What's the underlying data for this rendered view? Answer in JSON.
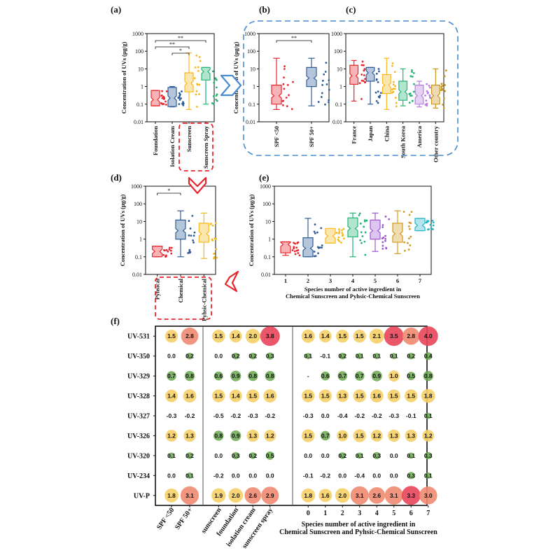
{
  "chart_data": [
    {
      "panel": "(a)",
      "type": "scatter",
      "ylabel": "Concentration of UVs (μg/g)",
      "yscale": "log",
      "ylim": [
        0.01,
        1000
      ],
      "yticks": [
        "0.01",
        "0.1",
        "1",
        "10",
        "100",
        "1000"
      ],
      "categories": [
        "Foundation",
        "Isolation Cream",
        "Sunscreen",
        "Sunscreen Spray"
      ],
      "colors": [
        "#e8262d",
        "#2e5d96",
        "#f6b81c",
        "#22b573"
      ],
      "medians": [
        0.18,
        0.22,
        1.5,
        7
      ],
      "ranges": [
        [
          0.08,
          0.6
        ],
        [
          0.07,
          1.0
        ],
        [
          0.05,
          80
        ],
        [
          0.1,
          12
        ]
      ],
      "significance": [
        {
          "from": 0,
          "to": 3,
          "label": "**"
        },
        {
          "from": 0,
          "to": 2,
          "label": "**"
        },
        {
          "from": 1,
          "to": 2,
          "label": "*"
        }
      ]
    },
    {
      "panel": "(b)",
      "type": "scatter",
      "ylabel": "Concentration of UVs (μg/g)",
      "yscale": "log",
      "ylim": [
        0.01,
        1000
      ],
      "yticks": [
        "0.01",
        "0.1",
        "1",
        "10",
        "100",
        "1000"
      ],
      "categories": [
        "SPF <50",
        "SPF 50+"
      ],
      "colors": [
        "#e8262d",
        "#2e5d96"
      ],
      "medians": [
        0.3,
        3
      ],
      "ranges": [
        [
          0.05,
          40
        ],
        [
          0.08,
          40
        ]
      ],
      "significance": [
        {
          "from": 0,
          "to": 1,
          "label": "**"
        }
      ]
    },
    {
      "panel": "(c)",
      "type": "scatter",
      "yscale": "log",
      "ylim": [
        0.01,
        1000
      ],
      "yticks": [
        "0.01",
        "0.1",
        "1",
        "10",
        "100",
        "1000"
      ],
      "categories": [
        "France",
        "Japan",
        "China",
        "South Korea",
        "America",
        "Other country"
      ],
      "colors": [
        "#e8262d",
        "#2e5d96",
        "#f6b81c",
        "#22b573",
        "#b57edc",
        "#c8961e"
      ],
      "medians": [
        4,
        6,
        1.2,
        0.5,
        0.3,
        0.3
      ],
      "ranges": [
        [
          0.15,
          30
        ],
        [
          0.1,
          12
        ],
        [
          0.05,
          40
        ],
        [
          0.08,
          10
        ],
        [
          0.07,
          2
        ],
        [
          0.06,
          10
        ]
      ]
    },
    {
      "panel": "(d)",
      "type": "scatter",
      "ylabel": "Concentration of UVs (μg/g)",
      "yscale": "log",
      "ylim": [
        0.01,
        1000
      ],
      "yticks": [
        "0.01",
        "0.1",
        "1",
        "10",
        "100",
        "1000"
      ],
      "categories": [
        "Pyhsical",
        "Chemical",
        "Pyhsic-Chemical"
      ],
      "colors": [
        "#e8262d",
        "#2e5d96",
        "#f6b81c"
      ],
      "medians": [
        0.2,
        3,
        2
      ],
      "ranges": [
        [
          0.1,
          0.4
        ],
        [
          0.1,
          40
        ],
        [
          0.08,
          30
        ]
      ],
      "significance": [
        {
          "from": 0,
          "to": 1,
          "label": "*"
        }
      ]
    },
    {
      "panel": "(e)",
      "type": "scatter",
      "ylabel": "Concentration of UVs (μg/g)",
      "xlabel": [
        "Species number of active ingredient in",
        "Chemical Sunscreen and Pyhsic-Chemical Sunscreen"
      ],
      "yscale": "log",
      "ylim": [
        0.01,
        1000
      ],
      "yticks": [
        "0.01",
        "0.1",
        "1",
        "10",
        "100",
        "1000"
      ],
      "categories": [
        "1",
        "2",
        "3",
        "4",
        "5",
        "6",
        "7"
      ],
      "colors": [
        "#e8262d",
        "#2e5d96",
        "#f6b81c",
        "#22b573",
        "#9b59d0",
        "#d59a1f",
        "#26b5c4"
      ],
      "medians": [
        0.5,
        0.3,
        1.5,
        4,
        3,
        2,
        6
      ],
      "ranges": [
        [
          0.12,
          0.7
        ],
        [
          0.1,
          15
        ],
        [
          0.6,
          4
        ],
        [
          0.1,
          30
        ],
        [
          0.2,
          30
        ],
        [
          0.15,
          40
        ],
        [
          3,
          15
        ]
      ]
    },
    {
      "panel": "(f)",
      "type": "heatmap",
      "rows": [
        "UV-531",
        "UV-350",
        "UV-329",
        "UV-328",
        "UV-327",
        "UV-326",
        "UV-320",
        "UV-234",
        "UV-P"
      ],
      "groups": [
        {
          "columns": [
            "SPF <50",
            "SPF 50+"
          ]
        },
        {
          "columns": [
            "sunscreen",
            "foundation",
            "isolation cream",
            "sunscreen spray"
          ]
        },
        {
          "columns": [
            "0",
            "1",
            "2",
            "3",
            "4",
            "5",
            "6",
            "7"
          ],
          "xlabel": [
            "Species number of active ingredient in",
            "Chemical Sunscreen and Pyhsic-Chemical Sunscreen"
          ]
        }
      ],
      "values": [
        [
          "1.5",
          "2.8",
          "1.5",
          "1.4",
          "2.0",
          "3.8",
          "1.6",
          "1.4",
          "1.5",
          "1.5",
          "2.1",
          "3.5",
          "2.8",
          "4.0"
        ],
        [
          "0.0",
          "0.2",
          "0.0",
          "0.2",
          "0.2",
          "0.3",
          "0.1",
          "-0.1",
          "0.2",
          "0.1",
          "0.1",
          "0.1",
          "0.2",
          "0.4"
        ],
        [
          "0.7",
          "0.8",
          "0.6",
          "0.9",
          "0.8",
          "0.8",
          "-",
          "0.6",
          "0.7",
          "0.7",
          "0.9",
          "1.0",
          "0.5",
          "0.8"
        ],
        [
          "1.4",
          "1.6",
          "1.5",
          "1.4",
          "1.5",
          "1.6",
          "1.5",
          "1.5",
          "1.3",
          "1.5",
          "1.6",
          "1.5",
          "1.5",
          "1.8"
        ],
        [
          "-0.3",
          "-0.2",
          "-0.5",
          "-0.2",
          "-0.3",
          "-0.2",
          "-0.3",
          "0.0",
          "-0.4",
          "-0.2",
          "-0.2",
          "-0.3",
          "-0.1",
          "0.1"
        ],
        [
          "1.2",
          "1.3",
          "0.8",
          "0.9",
          "1.3",
          "1.2",
          "1.5",
          "0.7",
          "1.0",
          "1.5",
          "1.2",
          "1.3",
          "1.3",
          "1.2"
        ],
        [
          "0.1",
          "0.2",
          "0.0",
          "0.3",
          "0.2",
          "0.5",
          "0.0",
          "0.0",
          "0.2",
          "0.1",
          "0.3",
          "0.0",
          "0.1",
          "0.3"
        ],
        [
          "0.0",
          "0.1",
          "-0.2",
          "0.0",
          "0.0",
          "0.0",
          "-0.1",
          "-0.2",
          "0.0",
          "-0.4",
          "0.0",
          "0.0",
          "0.3",
          "0.1"
        ],
        [
          "1.8",
          "3.1",
          "1.9",
          "2.0",
          "2.6",
          "2.9",
          "1.8",
          "1.6",
          "2.0",
          "3.1",
          "2.6",
          "3.1",
          "3.3",
          "3.0"
        ]
      ]
    }
  ]
}
